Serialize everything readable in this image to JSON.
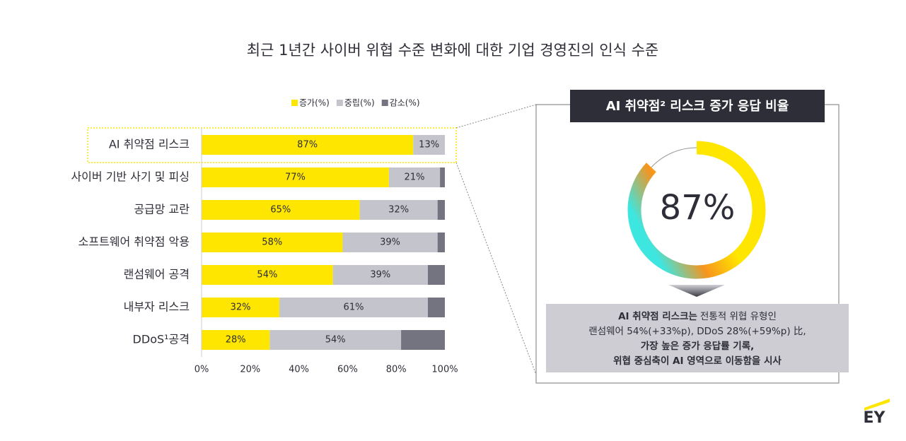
{
  "chart_data": {
    "type": "stacked-bar-horizontal",
    "title": "최근 1년간 사이버 위협 수준 변화에 대한 기업 경영진의 인식 수준",
    "categories": [
      "AI 취약점 리스크",
      "사이버 기반 사기 및 피싱",
      "공급망 교란",
      "소프트웨어 취약점 악용",
      "랜섬웨어 공격",
      "내부자 리스크",
      "DDoS¹공격"
    ],
    "series": [
      {
        "name": "증가(%)",
        "color": "#ffe600",
        "values": [
          87,
          77,
          65,
          58,
          54,
          32,
          28
        ],
        "value_labels": [
          "87%",
          "77%",
          "65%",
          "58%",
          "54%",
          "32%",
          "28%"
        ]
      },
      {
        "name": "중립(%)",
        "color": "#c4c4cd",
        "values": [
          13,
          21,
          32,
          39,
          39,
          61,
          54
        ],
        "value_labels": [
          "13%",
          "21%",
          "32%",
          "39%",
          "39%",
          "61%",
          "54%"
        ]
      },
      {
        "name": "감소(%)",
        "color": "#747480",
        "values": [
          0,
          2,
          3,
          3,
          7,
          7,
          18
        ]
      }
    ],
    "xlim": [
      0,
      100
    ],
    "xticks": [
      {
        "value": 0,
        "label": "0%"
      },
      {
        "value": 20,
        "label": "20%"
      },
      {
        "value": 40,
        "label": "40%"
      },
      {
        "value": 60,
        "label": "60%"
      },
      {
        "value": 80,
        "label": "80%"
      },
      {
        "value": 100,
        "label": "100%"
      }
    ]
  },
  "panel": {
    "title": "AI 취약점² 리스크 증가 응답 비율",
    "donut": {
      "value": 87,
      "label": "87%"
    },
    "callout": [
      [
        "AI 취약점 리스크는",
        "전통적 위협 유형인"
      ],
      [
        "랜섬웨어 54%(+33%p), DDoS 28%(+59%p) 比,"
      ],
      [
        "가장 높은 증가 응답률 기록,"
      ],
      [
        "위협 중심축이 AI 영역으로 이동함을 시사"
      ]
    ]
  },
  "logo": "EY"
}
